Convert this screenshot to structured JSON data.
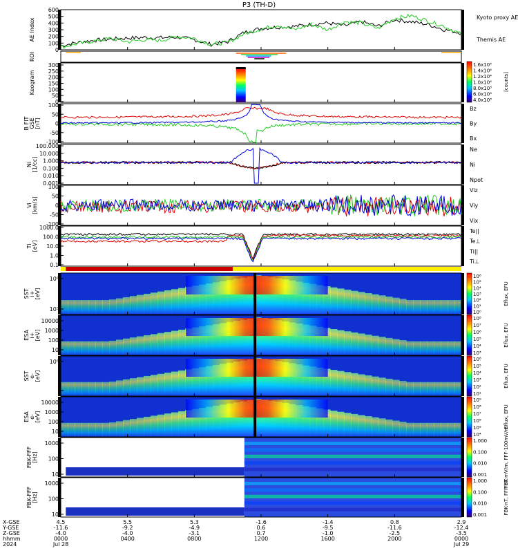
{
  "title": "P3 (TH-D)",
  "ephemeris": {
    "row_labels": [
      "X-GSE",
      "Y-GSE",
      "Z-GSE",
      "hhmm",
      "2024"
    ],
    "columns": [
      [
        "4.5",
        "-11.6",
        "-4.0",
        "0000",
        "Jul 28"
      ],
      [
        "5.5",
        "-9.2",
        "-4.0",
        "0400",
        ""
      ],
      [
        "5.3",
        "-4.9",
        "-3.1",
        "0800",
        ""
      ],
      [
        "-1.6",
        "0.6",
        "0.7",
        "1200",
        ""
      ],
      [
        "-1.4",
        "-9.5",
        "-1.0",
        "1600",
        ""
      ],
      [
        "0.8",
        "-11.6",
        "-2.5",
        "2000",
        ""
      ],
      [
        "2.9",
        "-12.4",
        "-3.5",
        "0000",
        "Jul 29"
      ]
    ]
  },
  "chart_data": [
    {
      "type": "line",
      "panel": "ae",
      "ylabel": "AE Index",
      "ylim": [
        0,
        600
      ],
      "yticks": [
        "600",
        "500",
        "400",
        "300",
        "200",
        "100",
        "0"
      ],
      "x_hours": [
        0,
        1,
        2,
        3,
        4,
        5,
        6,
        7,
        8,
        9,
        10,
        11,
        12,
        13,
        14,
        15,
        16,
        17,
        18,
        19,
        20,
        21,
        22,
        23,
        24
      ],
      "series": [
        {
          "name": "Themis AE",
          "color": "#000000",
          "values": [
            60,
            110,
            140,
            160,
            175,
            185,
            180,
            190,
            150,
            80,
            120,
            260,
            320,
            340,
            350,
            380,
            400,
            360,
            420,
            350,
            450,
            420,
            380,
            300,
            250
          ]
        },
        {
          "name": "Kyoto proxy AE",
          "color": "#22cc22",
          "values": [
            40,
            90,
            130,
            170,
            120,
            150,
            140,
            200,
            170,
            80,
            110,
            240,
            310,
            370,
            300,
            380,
            300,
            420,
            400,
            320,
            470,
            510,
            430,
            350,
            230
          ]
        }
      ]
    },
    {
      "type": "line",
      "panel": "b_fgm",
      "ylabel": "B FIT GSE [nT]",
      "ylim": [
        -100,
        100
      ],
      "yticks": [
        "100",
        "50",
        "0",
        "-50",
        "-100"
      ],
      "series": [
        {
          "name": "Bz",
          "color": "#dd0000"
        },
        {
          "name": "By",
          "color": "#22cc22"
        },
        {
          "name": "Bx",
          "color": "#0000dd"
        }
      ]
    },
    {
      "type": "line",
      "panel": "density",
      "ylabel": "Ni [1/cc]",
      "yscale": "log",
      "ylim": [
        0.001,
        100
      ],
      "yticks": [
        "100.000",
        "10.000",
        "1.000",
        "0.100",
        "0.010",
        "0.001"
      ],
      "series": [
        {
          "name": "Ne",
          "color": "#dd0000"
        },
        {
          "name": "Ni",
          "color": "#000000"
        },
        {
          "name": "Npot",
          "color": "#0000dd"
        }
      ]
    },
    {
      "type": "line",
      "panel": "velocity",
      "ylabel": "Vi [km/s]",
      "ylim": [
        -150,
        150
      ],
      "yticks": [
        "100",
        "50",
        "0",
        "-50",
        "-100"
      ],
      "series": [
        {
          "name": "Viz",
          "color": "#dd0000"
        },
        {
          "name": "Viy",
          "color": "#22cc22"
        },
        {
          "name": "Vix",
          "color": "#0000dd"
        }
      ]
    },
    {
      "type": "line",
      "panel": "temperature",
      "ylabel": "Ti [eV]",
      "yscale": "log",
      "ylim": [
        0.1,
        1000
      ],
      "yticks": [
        "1000.0",
        "100.0",
        "10.0",
        "1.0",
        "0.1"
      ],
      "series": [
        {
          "name": "Te||",
          "color": "#000000"
        },
        {
          "name": "Te⊥",
          "color": "#dd0000"
        },
        {
          "name": "Ti||",
          "color": "#22cc22"
        },
        {
          "name": "Ti⊥",
          "color": "#0000dd"
        }
      ]
    },
    {
      "type": "heatmap",
      "panel": "keogram",
      "ylabel": "Keogram",
      "yticks": [
        "300",
        "250",
        "200",
        "150",
        "100",
        "50",
        "0"
      ],
      "colorbar_ticks": [
        "1.6x10⁴",
        "1.4x10⁴",
        "1.2x10⁴",
        "1.0x10⁴",
        "8.0x10³",
        "6.0x10³",
        "4.0x10³"
      ],
      "colorbar_label": "[counts]"
    },
    {
      "type": "heatmap",
      "panel": "sst_ion",
      "ylabel": "SST i+ [eV]",
      "yticks": [
        "10⁶",
        "10⁵"
      ],
      "colorbar_ticks": [
        "10⁶",
        "10⁵",
        "10⁴",
        "10³",
        "10²",
        "10¹",
        "10⁰"
      ],
      "colorbar_label": "Eflux, EFU"
    },
    {
      "type": "heatmap",
      "panel": "esa_ion",
      "ylabel": "ESA i+ [eV]",
      "yticks": [
        "10000",
        "1000",
        "100",
        "10"
      ],
      "colorbar_ticks": [
        "10⁸",
        "10⁷",
        "10⁶",
        "10⁵",
        "10⁴",
        "10³"
      ],
      "colorbar_label": "Eflux, EFU"
    },
    {
      "type": "heatmap",
      "panel": "sst_elec",
      "ylabel": "SST e- [eV]",
      "yticks": [
        "10⁵"
      ],
      "colorbar_ticks": [
        "10⁶",
        "10⁵",
        "10⁴",
        "10³",
        "10²",
        "10¹"
      ],
      "colorbar_label": "Eflux, EFU"
    },
    {
      "type": "heatmap",
      "panel": "esa_elec",
      "ylabel": "ESA e- [eV]",
      "yticks": [
        "10000",
        "1000",
        "100",
        "10"
      ],
      "colorbar_ticks": [
        "10⁹",
        "10⁸",
        "10⁷",
        "10⁶",
        "10⁵",
        "10⁴"
      ],
      "colorbar_label": "Eflux, EFU"
    },
    {
      "type": "heatmap",
      "panel": "fbk_fff",
      "ylabel": "FBK-FFF [Hz]",
      "yticks": [
        "1000",
        "100",
        "10"
      ],
      "colorbar_ticks": [
        "1.000",
        "0.100",
        "0.010",
        "0.001"
      ],
      "colorbar_label": "FBK-mV/m, FFF-100mV/m"
    },
    {
      "type": "heatmap",
      "panel": "fbk_fff_nt",
      "ylabel": "FBK-FFF [Hz]",
      "yticks": [
        "1000",
        "100",
        "10"
      ],
      "colorbar_ticks": [
        "1.000",
        "0.100",
        "0.010",
        "0.001"
      ],
      "colorbar_label": "FBK-nT, FFF-nT"
    }
  ],
  "roi_label": "ROI",
  "colors": {
    "red": "#dd0000",
    "green": "#22cc22",
    "blue": "#0000dd",
    "black": "#000000",
    "roi_bar": "#ffee00",
    "roi_red": "#cc0000"
  }
}
